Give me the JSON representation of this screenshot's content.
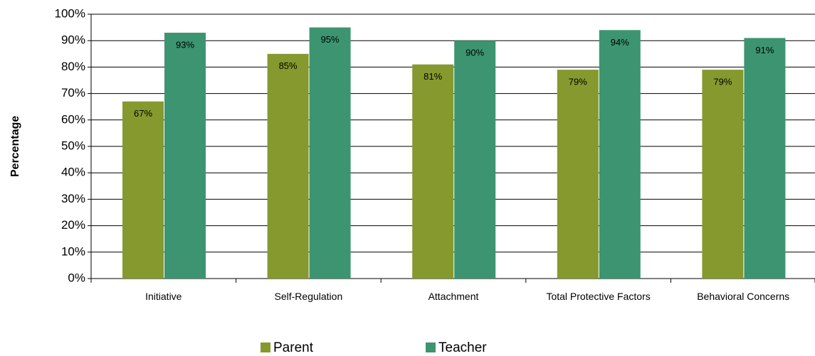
{
  "chart_data": {
    "type": "bar",
    "y_label": "Percentage",
    "categories": [
      "Initiative",
      "Self-Regulation",
      "Attachment",
      "Total Protective Factors",
      "Behavioral Concerns"
    ],
    "series": [
      {
        "name": "Parent",
        "color": "#86992e",
        "values": [
          67,
          85,
          81,
          79,
          79
        ],
        "value_labels": [
          "67%",
          "85%",
          "81%",
          "79%",
          "79%"
        ]
      },
      {
        "name": "Teacher",
        "color": "#3c9570",
        "values": [
          93,
          95,
          90,
          94,
          91
        ],
        "value_labels": [
          "93%",
          "95%",
          "90%",
          "94%",
          "91%"
        ]
      }
    ],
    "ylim": [
      0,
      100
    ],
    "yticks": [
      {
        "value": 0,
        "label": "0%"
      },
      {
        "value": 10,
        "label": "10%"
      },
      {
        "value": 20,
        "label": "20%"
      },
      {
        "value": 30,
        "label": "30%"
      },
      {
        "value": 40,
        "label": "40%"
      },
      {
        "value": 50,
        "label": "50%"
      },
      {
        "value": 60,
        "label": "60%"
      },
      {
        "value": 70,
        "label": "70%"
      },
      {
        "value": 80,
        "label": "80%"
      },
      {
        "value": 90,
        "label": "90%"
      },
      {
        "value": 100,
        "label": "100%"
      }
    ],
    "grid": true,
    "legend": "bottom"
  }
}
